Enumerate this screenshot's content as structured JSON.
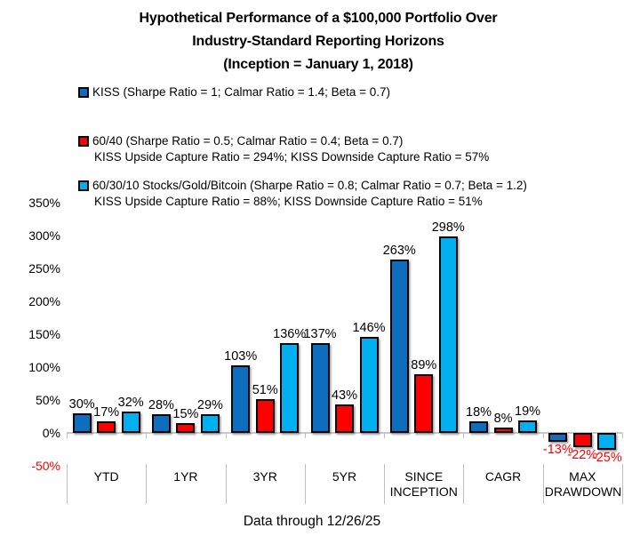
{
  "title": {
    "lines": [
      "Hypothetical Performance of a $100,000 Portfolio Over",
      "Industry-Standard Reporting Horizons",
      "(Inception = January 1, 2018)"
    ]
  },
  "legend": [
    {
      "label": "KISS (Sharpe Ratio = 1; Calmar Ratio = 1.4; Beta = 0.7)",
      "sub": "",
      "color": "#0d6dbe"
    },
    {
      "label": "60/40 (Sharpe Ratio = 0.5; Calmar Ratio = 0.4; Beta = 0.7)",
      "sub": "KISS Upside Capture Ratio = 294%; KISS Downside Capture Ratio = 57%",
      "color": "#ff0000"
    },
    {
      "label": "60/30/10 Stocks/Gold/Bitcoin (Sharpe Ratio = 0.8; Calmar Ratio = 0.7; Beta = 1.2)",
      "sub": "KISS Upside Capture Ratio = 88%; KISS Downside Capture Ratio = 51%",
      "color": "#00b0f0"
    }
  ],
  "chart_data": {
    "type": "bar",
    "categories": [
      "YTD",
      "1YR",
      "3YR",
      "5YR",
      "SINCE INCEPTION",
      "CAGR",
      "MAX DRAWDOWN"
    ],
    "series": [
      {
        "name": "KISS",
        "color": "#0d6dbe",
        "values": [
          30,
          28,
          103,
          137,
          263,
          18,
          -13
        ]
      },
      {
        "name": "60/40",
        "color": "#ff0000",
        "values": [
          17,
          15,
          51,
          43,
          89,
          8,
          -22
        ]
      },
      {
        "name": "60/30/10 Stocks/Gold/Bitcoin",
        "color": "#00b0f0",
        "values": [
          32,
          29,
          136,
          146,
          298,
          19,
          -25
        ]
      }
    ],
    "y_ticks": [
      350,
      300,
      250,
      200,
      150,
      100,
      50,
      0,
      -50
    ],
    "ylim": [
      -50,
      350
    ],
    "value_label_suffix": "%",
    "negative_color": "#ff0000",
    "axis_line_color": "#c9c9c9",
    "grid": false,
    "legend_position": "top-left"
  },
  "caption": "Data through 12/26/25"
}
